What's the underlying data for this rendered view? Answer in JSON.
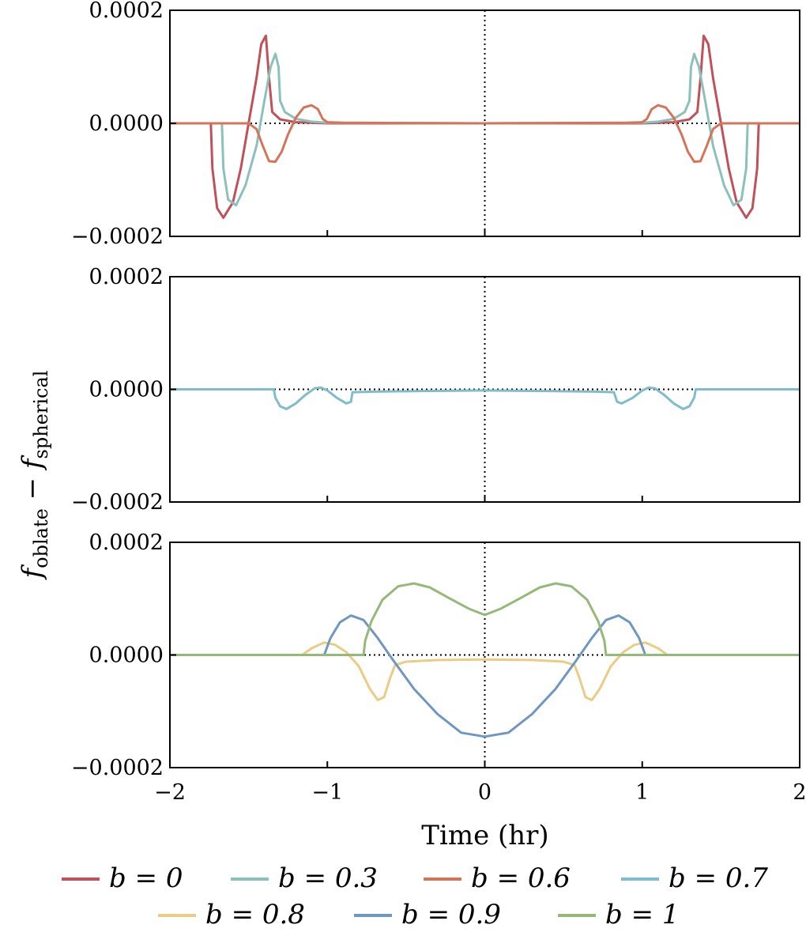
{
  "chart_data": {
    "type": "line",
    "xlabel": "Time (hr)",
    "ylabel": "f_oblate − f_spherical",
    "ylabel_parts": {
      "main": "f",
      "sub1": "oblate",
      "minus": " − ",
      "main2": "f",
      "sub2": "spherical"
    },
    "xlim": [
      -2,
      2
    ],
    "ylim": [
      -0.0002,
      0.0002
    ],
    "xticks": [
      "−2",
      "−1",
      "0",
      "1",
      "2"
    ],
    "yticks": [
      "−0.0002",
      "0.0000",
      "0.0002"
    ],
    "grid": false,
    "reference_lines": "dotted y=0 and x=0 in every panel",
    "legend_placement": "bottom",
    "legend": [
      {
        "label": "b = 0",
        "color": "#c0505a"
      },
      {
        "label": "b = 0.3",
        "color": "#8cc1bb"
      },
      {
        "label": "b = 0.6",
        "color": "#d4755a"
      },
      {
        "label": "b = 0.7",
        "color": "#7fbccc"
      },
      {
        "label": "b = 0.8",
        "color": "#ebcc85"
      },
      {
        "label": "b = 0.9",
        "color": "#7097c2"
      },
      {
        "label": "b = 1",
        "color": "#96b97a"
      }
    ],
    "panels": [
      {
        "series": [
          {
            "label": "b = 0",
            "color": "#c0505a",
            "points": [
              [
                -2,
                0
              ],
              [
                -1.74,
                0
              ],
              [
                -1.73,
                -8e-05
              ],
              [
                -1.7,
                -0.00015
              ],
              [
                -1.66,
                -0.000167
              ],
              [
                -1.6,
                -0.00014
              ],
              [
                -1.55,
                -8e-05
              ],
              [
                -1.5,
                0
              ],
              [
                -1.45,
                8e-05
              ],
              [
                -1.42,
                0.00014
              ],
              [
                -1.39,
                0.000155
              ],
              [
                -1.37,
                8e-05
              ],
              [
                -1.35,
                2e-05
              ],
              [
                -1.3,
                7e-06
              ],
              [
                -1.2,
                2e-06
              ],
              [
                -1.0,
                0
              ],
              [
                0,
                0
              ],
              [
                1.0,
                0
              ],
              [
                1.2,
                2e-06
              ],
              [
                1.3,
                7e-06
              ],
              [
                1.35,
                2e-05
              ],
              [
                1.37,
                8e-05
              ],
              [
                1.39,
                0.000155
              ],
              [
                1.42,
                0.00014
              ],
              [
                1.45,
                8e-05
              ],
              [
                1.5,
                0
              ],
              [
                1.55,
                -8e-05
              ],
              [
                1.6,
                -0.00014
              ],
              [
                1.66,
                -0.000167
              ],
              [
                1.7,
                -0.00015
              ],
              [
                1.73,
                -8e-05
              ],
              [
                1.74,
                0
              ],
              [
                2,
                0
              ]
            ]
          },
          {
            "label": "b = 0.3",
            "color": "#8cc1bb",
            "points": [
              [
                -2,
                0
              ],
              [
                -1.67,
                0
              ],
              [
                -1.66,
                -8e-05
              ],
              [
                -1.63,
                -0.000135
              ],
              [
                -1.58,
                -0.000145
              ],
              [
                -1.52,
                -0.00011
              ],
              [
                -1.45,
                -4e-05
              ],
              [
                -1.4,
                4e-05
              ],
              [
                -1.36,
                0.0001
              ],
              [
                -1.33,
                0.000123
              ],
              [
                -1.31,
                0.0001
              ],
              [
                -1.3,
                4e-05
              ],
              [
                -1.27,
                2e-05
              ],
              [
                -1.2,
                8e-06
              ],
              [
                -1.1,
                3e-06
              ],
              [
                -1.0,
                1e-06
              ],
              [
                0,
                0
              ],
              [
                1.0,
                1e-06
              ],
              [
                1.1,
                3e-06
              ],
              [
                1.2,
                8e-06
              ],
              [
                1.27,
                2e-05
              ],
              [
                1.3,
                4e-05
              ],
              [
                1.31,
                0.0001
              ],
              [
                1.33,
                0.000123
              ],
              [
                1.36,
                0.0001
              ],
              [
                1.4,
                4e-05
              ],
              [
                1.45,
                -4e-05
              ],
              [
                1.52,
                -0.00011
              ],
              [
                1.58,
                -0.000145
              ],
              [
                1.63,
                -0.000135
              ],
              [
                1.66,
                -8e-05
              ],
              [
                1.67,
                0
              ],
              [
                2,
                0
              ]
            ]
          },
          {
            "label": "b = 0.6",
            "color": "#d4755a",
            "points": [
              [
                -2,
                0
              ],
              [
                -1.5,
                0
              ],
              [
                -1.45,
                -1e-05
              ],
              [
                -1.41,
                -4e-05
              ],
              [
                -1.37,
                -6.7e-05
              ],
              [
                -1.33,
                -6.8e-05
              ],
              [
                -1.29,
                -5e-05
              ],
              [
                -1.25,
                -2e-05
              ],
              [
                -1.2,
                1e-05
              ],
              [
                -1.15,
                2.8e-05
              ],
              [
                -1.1,
                3.2e-05
              ],
              [
                -1.06,
                2.5e-05
              ],
              [
                -1.03,
                8e-06
              ],
              [
                -1.0,
                2e-06
              ],
              [
                -0.9,
                1e-06
              ],
              [
                0,
                0
              ],
              [
                0.9,
                1e-06
              ],
              [
                1.0,
                2e-06
              ],
              [
                1.03,
                8e-06
              ],
              [
                1.06,
                2.5e-05
              ],
              [
                1.1,
                3.2e-05
              ],
              [
                1.15,
                2.8e-05
              ],
              [
                1.2,
                1e-05
              ],
              [
                1.25,
                -2e-05
              ],
              [
                1.29,
                -5e-05
              ],
              [
                1.33,
                -6.8e-05
              ],
              [
                1.37,
                -6.7e-05
              ],
              [
                1.41,
                -4e-05
              ],
              [
                1.45,
                -1e-05
              ],
              [
                1.5,
                0
              ],
              [
                2,
                0
              ]
            ]
          }
        ]
      },
      {
        "series": [
          {
            "label": "b = 0.7",
            "color": "#7fbccc",
            "points": [
              [
                -2,
                0
              ],
              [
                -1.34,
                0
              ],
              [
                -1.33,
                -1.5e-05
              ],
              [
                -1.3,
                -3e-05
              ],
              [
                -1.26,
                -3.5e-05
              ],
              [
                -1.2,
                -2.5e-05
              ],
              [
                -1.14,
                -1e-05
              ],
              [
                -1.08,
                2e-06
              ],
              [
                -1.04,
                3e-06
              ],
              [
                -1.0,
                -2e-06
              ],
              [
                -0.94,
                -1.5e-05
              ],
              [
                -0.88,
                -2.5e-05
              ],
              [
                -0.85,
                -2.2e-05
              ],
              [
                -0.84,
                -5e-06
              ],
              [
                -0.7,
                -4e-06
              ],
              [
                -0.4,
                -3e-06
              ],
              [
                0,
                -2e-06
              ],
              [
                0.4,
                -3e-06
              ],
              [
                0.7,
                -4e-06
              ],
              [
                0.82,
                -5e-06
              ],
              [
                0.84,
                -2.2e-05
              ],
              [
                0.87,
                -2.5e-05
              ],
              [
                0.94,
                -1.5e-05
              ],
              [
                1.0,
                -2e-06
              ],
              [
                1.04,
                3e-06
              ],
              [
                1.08,
                2e-06
              ],
              [
                1.14,
                -1e-05
              ],
              [
                1.2,
                -2.5e-05
              ],
              [
                1.26,
                -3.5e-05
              ],
              [
                1.3,
                -3e-05
              ],
              [
                1.33,
                -1.5e-05
              ],
              [
                1.34,
                0
              ],
              [
                2,
                0
              ]
            ]
          }
        ]
      },
      {
        "series": [
          {
            "label": "b = 0.8",
            "color": "#ebcc85",
            "points": [
              [
                -2,
                0
              ],
              [
                -1.16,
                0
              ],
              [
                -1.1,
                1.2e-05
              ],
              [
                -1.02,
                2.2e-05
              ],
              [
                -0.95,
                1.8e-05
              ],
              [
                -0.88,
                5e-06
              ],
              [
                -0.8,
                -2e-05
              ],
              [
                -0.73,
                -6e-05
              ],
              [
                -0.68,
                -8e-05
              ],
              [
                -0.64,
                -7.5e-05
              ],
              [
                -0.6,
                -4e-05
              ],
              [
                -0.57,
                -1.8e-05
              ],
              [
                -0.5,
                -1.2e-05
              ],
              [
                -0.3,
                -9e-06
              ],
              [
                0,
                -8e-06
              ],
              [
                0.3,
                -9e-06
              ],
              [
                0.5,
                -1.2e-05
              ],
              [
                0.57,
                -1.8e-05
              ],
              [
                0.6,
                -4e-05
              ],
              [
                0.64,
                -7.5e-05
              ],
              [
                0.68,
                -8e-05
              ],
              [
                0.73,
                -6e-05
              ],
              [
                0.8,
                -2e-05
              ],
              [
                0.88,
                5e-06
              ],
              [
                0.95,
                1.8e-05
              ],
              [
                1.02,
                2.2e-05
              ],
              [
                1.1,
                1.2e-05
              ],
              [
                1.16,
                0
              ],
              [
                2,
                0
              ]
            ]
          },
          {
            "label": "b = 0.9",
            "color": "#7097c2",
            "points": [
              [
                -2,
                0
              ],
              [
                -1.02,
                0
              ],
              [
                -0.98,
                3e-05
              ],
              [
                -0.92,
                5.8e-05
              ],
              [
                -0.85,
                7e-05
              ],
              [
                -0.77,
                6.2e-05
              ],
              [
                -0.68,
                3e-05
              ],
              [
                -0.58,
                -1e-05
              ],
              [
                -0.45,
                -6e-05
              ],
              [
                -0.3,
                -0.000105
              ],
              [
                -0.15,
                -0.000138
              ],
              [
                0,
                -0.000145
              ],
              [
                0.15,
                -0.000138
              ],
              [
                0.3,
                -0.000105
              ],
              [
                0.45,
                -6e-05
              ],
              [
                0.58,
                -1e-05
              ],
              [
                0.68,
                3e-05
              ],
              [
                0.77,
                6.2e-05
              ],
              [
                0.85,
                7e-05
              ],
              [
                0.92,
                5.8e-05
              ],
              [
                0.98,
                3e-05
              ],
              [
                1.02,
                0
              ],
              [
                2,
                0
              ]
            ]
          },
          {
            "label": "b = 1",
            "color": "#96b97a",
            "points": [
              [
                -2,
                0
              ],
              [
                -0.77,
                0
              ],
              [
                -0.76,
                2.5e-05
              ],
              [
                -0.72,
                6e-05
              ],
              [
                -0.65,
                9.8e-05
              ],
              [
                -0.55,
                0.000122
              ],
              [
                -0.45,
                0.000127
              ],
              [
                -0.35,
                0.00012
              ],
              [
                -0.22,
                0.0001
              ],
              [
                -0.1,
                8.2e-05
              ],
              [
                0,
                7.1e-05
              ],
              [
                0.1,
                8.2e-05
              ],
              [
                0.22,
                0.0001
              ],
              [
                0.35,
                0.00012
              ],
              [
                0.45,
                0.000127
              ],
              [
                0.55,
                0.000122
              ],
              [
                0.65,
                9.8e-05
              ],
              [
                0.72,
                6e-05
              ],
              [
                0.76,
                2.5e-05
              ],
              [
                0.77,
                0
              ],
              [
                2,
                0
              ]
            ]
          }
        ]
      }
    ]
  }
}
